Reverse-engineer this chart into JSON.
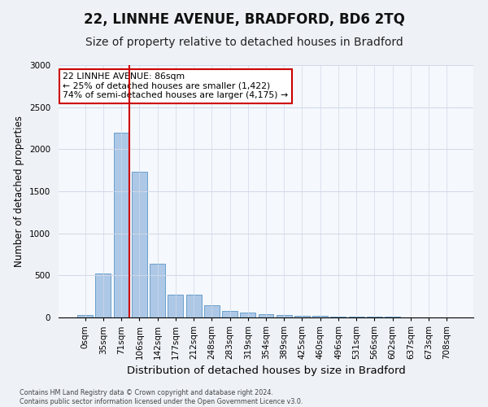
{
  "title1": "22, LINNHE AVENUE, BRADFORD, BD6 2TQ",
  "title2": "Size of property relative to detached houses in Bradford",
  "xlabel": "Distribution of detached houses by size in Bradford",
  "ylabel": "Number of detached properties",
  "categories": [
    "0sqm",
    "35sqm",
    "71sqm",
    "106sqm",
    "142sqm",
    "177sqm",
    "212sqm",
    "248sqm",
    "283sqm",
    "319sqm",
    "354sqm",
    "389sqm",
    "425sqm",
    "460sqm",
    "496sqm",
    "531sqm",
    "566sqm",
    "602sqm",
    "637sqm",
    "673sqm",
    "708sqm"
  ],
  "values": [
    25,
    520,
    2195,
    1730,
    640,
    275,
    275,
    145,
    75,
    60,
    40,
    25,
    20,
    15,
    10,
    8,
    5,
    5,
    3,
    3,
    3
  ],
  "bar_color": "#adc8e6",
  "bar_edge_color": "#6aa0cc",
  "annotation_text": "22 LINNHE AVENUE: 86sqm\n← 25% of detached houses are smaller (1,422)\n74% of semi-detached houses are larger (4,175) →",
  "annotation_box_color": "#ffffff",
  "annotation_box_edge_color": "#cc0000",
  "red_line_index": 2.43,
  "ylim": [
    0,
    3000
  ],
  "yticks": [
    0,
    500,
    1000,
    1500,
    2000,
    2500,
    3000
  ],
  "title1_fontsize": 12,
  "title2_fontsize": 10,
  "xlabel_fontsize": 9.5,
  "ylabel_fontsize": 8.5,
  "tick_fontsize": 7.5,
  "footer_text": "Contains HM Land Registry data © Crown copyright and database right 2024.\nContains public sector information licensed under the Open Government Licence v3.0.",
  "background_color": "#eef2f7",
  "plot_background_color": "#f5f8fc",
  "grid_color": "#d0d8e8"
}
